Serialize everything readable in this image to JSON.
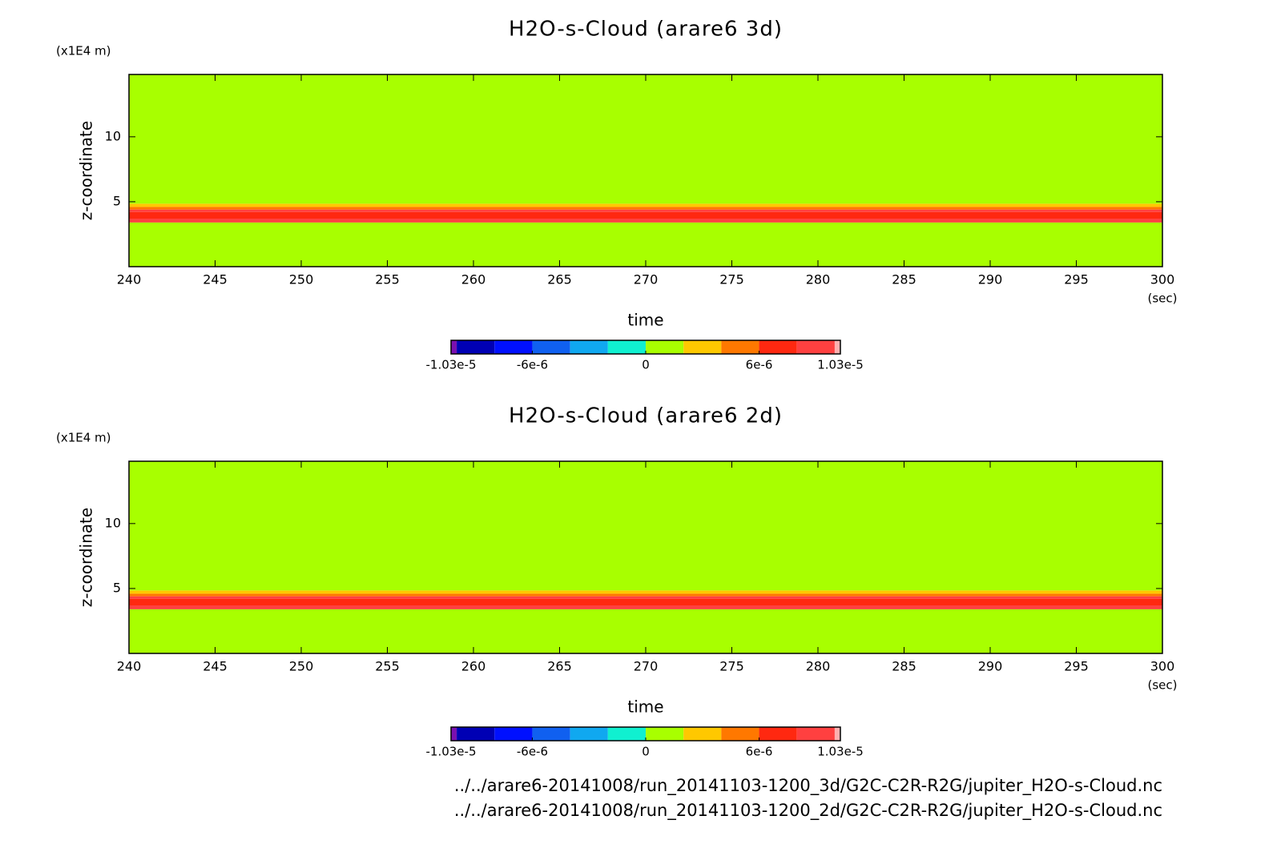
{
  "chart_data": [
    {
      "type": "contour",
      "title": "H2O-s-Cloud (arare6 3d)",
      "x_label": "time",
      "x_unit": "(sec)",
      "y_label": "z-coordinate",
      "y_unit": "(x1E4 m)",
      "xlim": [
        240,
        300
      ],
      "xticks": [
        240,
        245,
        250,
        255,
        260,
        265,
        270,
        275,
        280,
        285,
        290,
        295,
        300
      ],
      "ylim": [
        0,
        14.8
      ],
      "yticks": [
        5,
        10
      ],
      "z_edges": [
        0,
        3.4,
        3.7,
        4.2,
        4.4,
        4.6,
        4.85,
        14.8
      ],
      "values": [
        0,
        9e-06,
        7e-06,
        9e-06,
        5e-06,
        3e-06,
        0
      ],
      "colorbar": {
        "levels": [
          -1.03e-05,
          -1e-05,
          -8e-06,
          -6e-06,
          -4e-06,
          -2e-06,
          0,
          2e-06,
          4e-06,
          6e-06,
          8e-06,
          1e-05,
          1.03e-05
        ],
        "colors": [
          "#7a10b0",
          "#0000b4",
          "#0010ff",
          "#1060f0",
          "#10a8f0",
          "#10f0d0",
          "#a8ff00",
          "#ffc800",
          "#ff7800",
          "#ff2810",
          "#ff4040",
          "#ffb0b0"
        ],
        "ticks": [
          {
            "value": -1.03e-05,
            "label": "-1.03e-5"
          },
          {
            "value": -6e-06,
            "label": "-6e-6"
          },
          0,
          {
            "value": 6e-06,
            "label": "6e-6"
          },
          {
            "value": 1.03e-05,
            "label": "1.03e-5"
          }
        ]
      }
    },
    {
      "type": "contour",
      "title": "H2O-s-Cloud (arare6 2d)",
      "x_label": "time",
      "x_unit": "(sec)",
      "y_label": "z-coordinate",
      "y_unit": "(x1E4 m)",
      "xlim": [
        240,
        300
      ],
      "xticks": [
        240,
        245,
        250,
        255,
        260,
        265,
        270,
        275,
        280,
        285,
        290,
        295,
        300
      ],
      "ylim": [
        0,
        14.8
      ],
      "yticks": [
        5,
        10
      ],
      "z_edges": [
        0,
        3.4,
        3.7,
        4.2,
        4.4,
        4.6,
        4.85,
        14.8
      ],
      "values": [
        0,
        9e-06,
        7e-06,
        9e-06,
        5e-06,
        3e-06,
        0
      ],
      "colorbar": {
        "levels": [
          -1.03e-05,
          -1e-05,
          -8e-06,
          -6e-06,
          -4e-06,
          -2e-06,
          0,
          2e-06,
          4e-06,
          6e-06,
          8e-06,
          1e-05,
          1.03e-05
        ],
        "colors": [
          "#7a10b0",
          "#0000b4",
          "#0010ff",
          "#1060f0",
          "#10a8f0",
          "#10f0d0",
          "#a8ff00",
          "#ffc800",
          "#ff7800",
          "#ff2810",
          "#ff4040",
          "#ffb0b0"
        ],
        "ticks": [
          {
            "value": -1.03e-05,
            "label": "-1.03e-5"
          },
          {
            "value": -6e-06,
            "label": "-6e-6"
          },
          0,
          {
            "value": 6e-06,
            "label": "6e-6"
          },
          {
            "value": 1.03e-05,
            "label": "1.03e-5"
          }
        ]
      }
    }
  ],
  "footnotes": [
    "../../arare6-20141008/run_20141103-1200_3d/G2C-C2R-R2G/jupiter_H2O-s-Cloud.nc",
    "../../arare6-20141008/run_20141103-1200_2d/G2C-C2R-R2G/jupiter_H2O-s-Cloud.nc"
  ]
}
